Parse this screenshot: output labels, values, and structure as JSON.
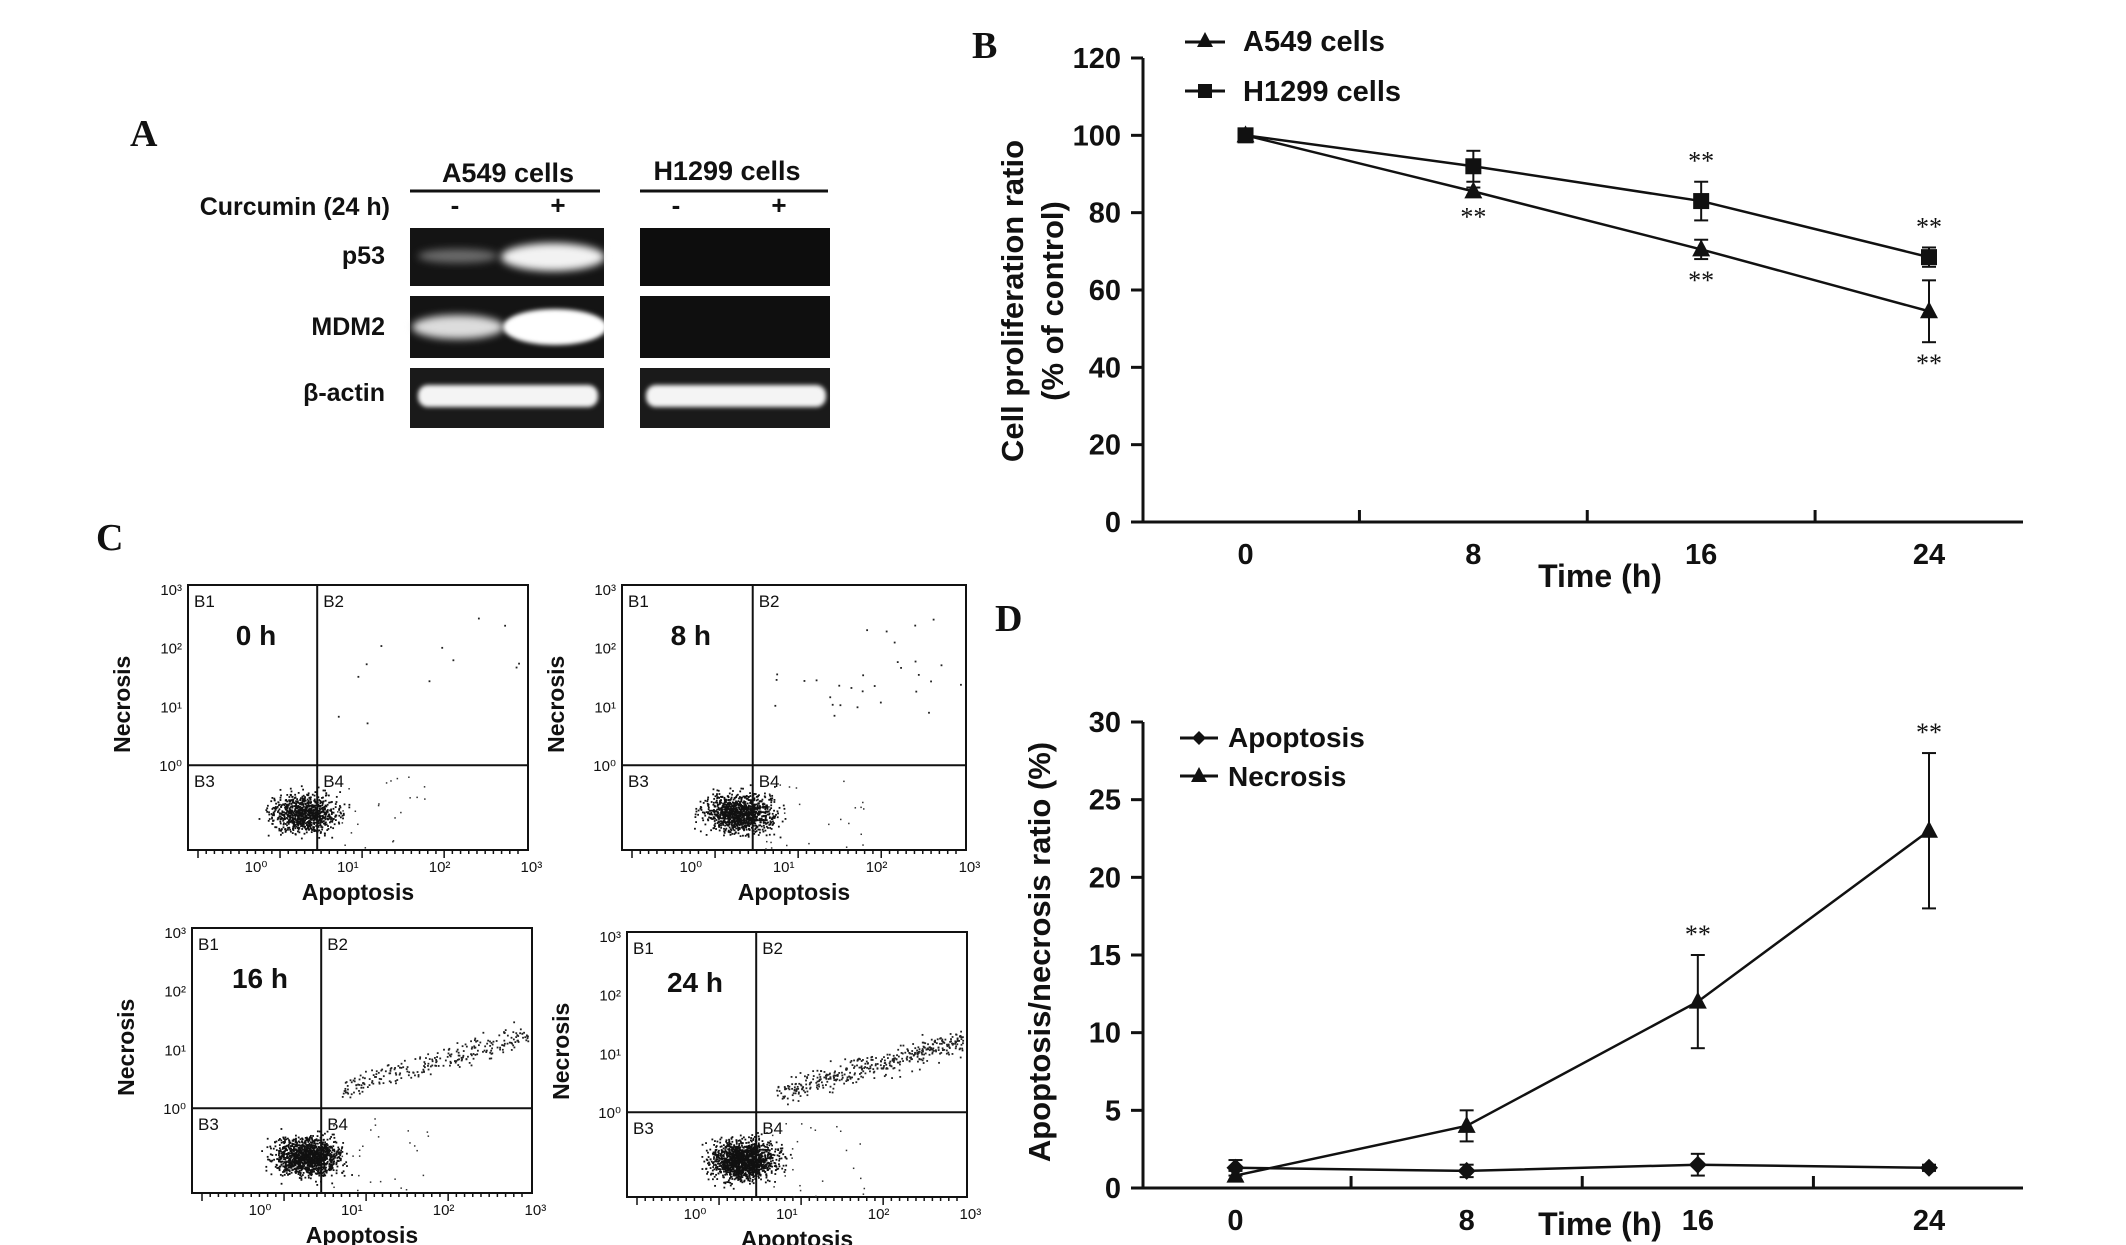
{
  "panels": {
    "a": "A",
    "b": "B",
    "c": "C",
    "d": "D"
  },
  "western_blot": {
    "treatment_label": "Curcumin (24 h)",
    "cell_lines": [
      "A549 cells",
      "H1299 cells"
    ],
    "lane_signs": [
      "-",
      "+",
      "-",
      "+"
    ],
    "proteins": [
      "p53",
      "MDM2",
      "β-actin"
    ]
  },
  "flow": {
    "xlabel": "Apoptosis",
    "ylabel": "Necrosis",
    "quadrants": [
      "B1",
      "B2",
      "B3",
      "B4"
    ],
    "ticks_y": [
      "10³",
      "10²",
      "10¹",
      "10⁰"
    ],
    "ticks_x": [
      "10⁰",
      "10¹",
      "10²",
      "10³"
    ],
    "times": [
      "0 h",
      "8 h",
      "16 h",
      "24 h"
    ]
  },
  "chart_data": [
    {
      "type": "line",
      "panel": "B",
      "x": [
        0,
        8,
        16,
        24
      ],
      "xlabel": "Time (h)",
      "ylabel_line1": "Cell proliferation ratio",
      "ylabel_line2": "(% of control)",
      "ylim": [
        0,
        120
      ],
      "yticks": [
        0,
        20,
        40,
        60,
        80,
        100,
        120
      ],
      "legend": "top-left",
      "series": [
        {
          "name": "A549 cells",
          "marker": "triangle",
          "values": [
            100,
            85.5,
            70.5,
            54.5
          ],
          "errors": [
            0,
            1,
            2.5,
            8
          ],
          "significance": [
            "",
            "**",
            "**",
            "**"
          ]
        },
        {
          "name": "H1299 cells",
          "marker": "square",
          "values": [
            100,
            92,
            83,
            68.5
          ],
          "errors": [
            0,
            4,
            5,
            2.5
          ],
          "significance": [
            "",
            "",
            "**",
            "**"
          ]
        }
      ]
    },
    {
      "type": "line",
      "panel": "D",
      "x": [
        0,
        8,
        16,
        24
      ],
      "xlabel": "Time (h)",
      "ylabel": "Apoptosis/necrosis ratio (%)",
      "ylim": [
        0,
        30
      ],
      "yticks": [
        0,
        5,
        10,
        15,
        20,
        25,
        30
      ],
      "legend": "top-left",
      "series": [
        {
          "name": "Apoptosis",
          "marker": "diamond",
          "values": [
            1.3,
            1.1,
            1.5,
            1.3
          ],
          "errors": [
            0.5,
            0.4,
            0.7,
            0.2
          ],
          "significance": [
            "",
            "",
            "",
            ""
          ]
        },
        {
          "name": "Necrosis",
          "marker": "triangle",
          "values": [
            0.8,
            4,
            12,
            23
          ],
          "errors": [
            0.3,
            1,
            3,
            5
          ],
          "significance": [
            "",
            "",
            "**",
            "**"
          ]
        }
      ]
    }
  ]
}
